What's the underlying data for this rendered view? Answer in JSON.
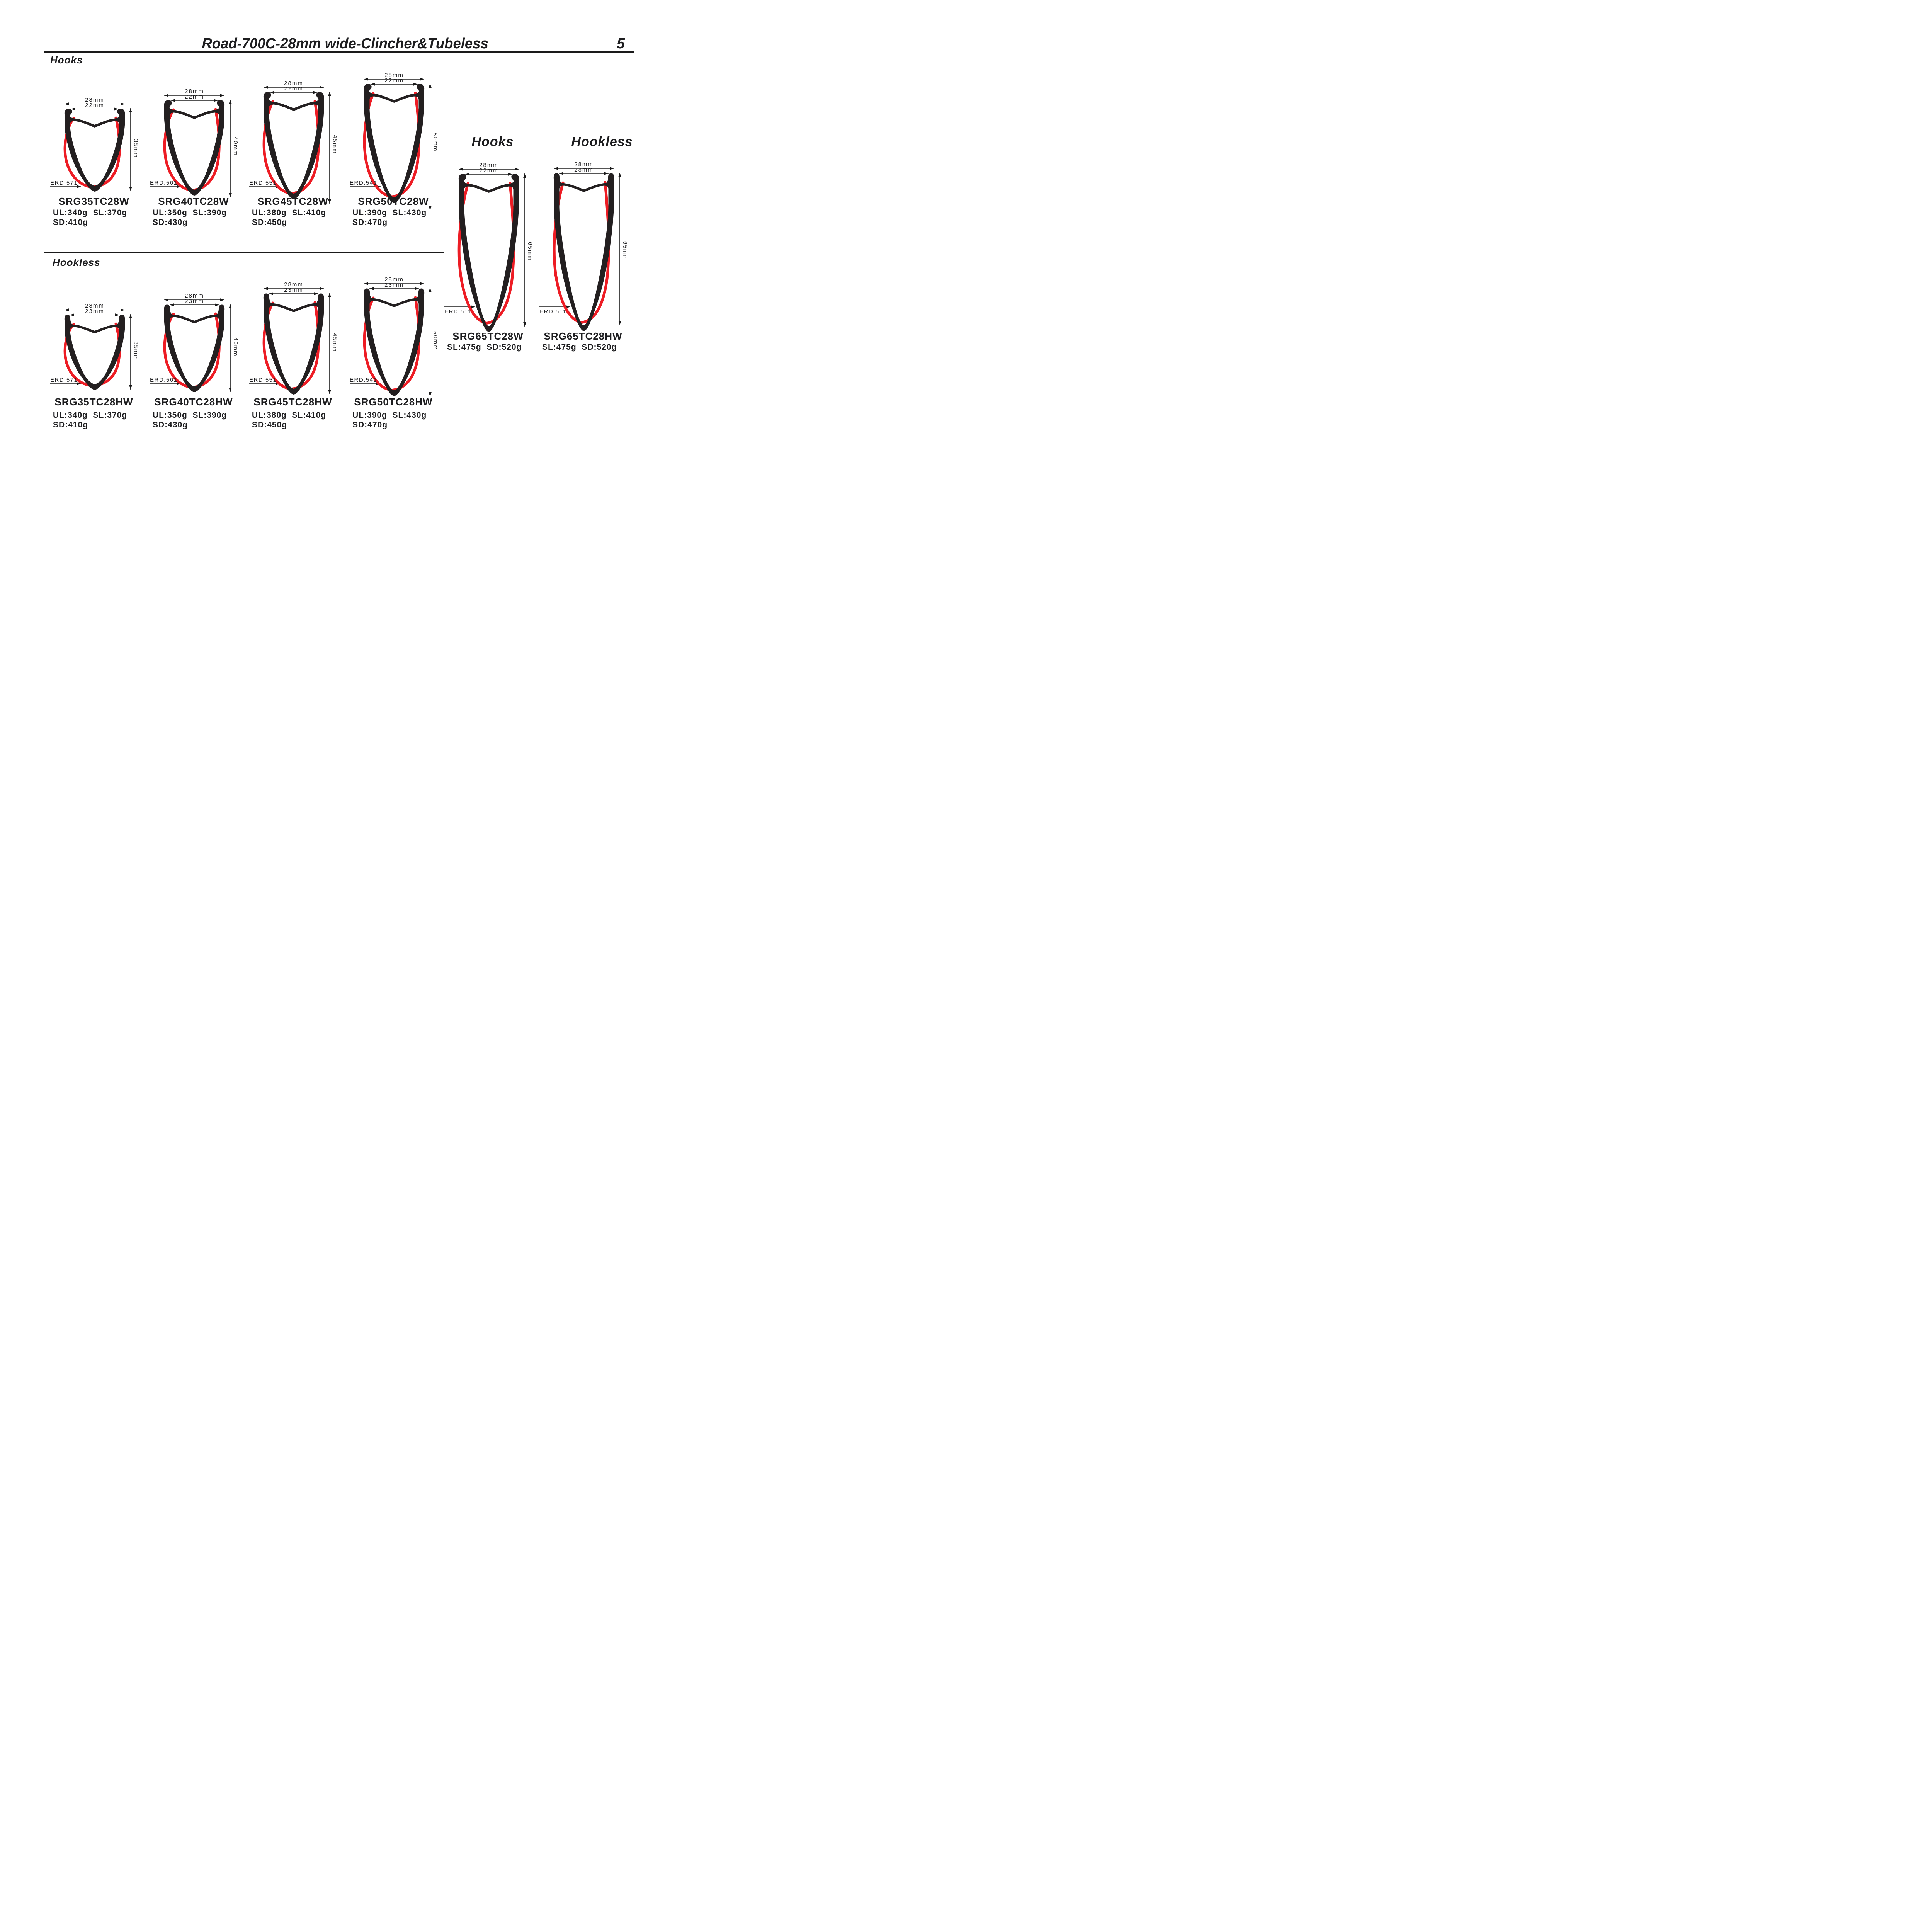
{
  "page": {
    "title": "Road-700C-28mm wide-Clincher&Tubeless",
    "page_number": "5"
  },
  "sections": {
    "hooks_heading": "Hooks",
    "hookless_heading": "Hookless",
    "right_hooks_heading": "Hooks",
    "right_hookless_heading": "Hookless"
  },
  "colors": {
    "profile_black": "#231f20",
    "accent_red": "#ed1c24",
    "text_black": "#1d1d1f"
  },
  "rims": [
    {
      "model": "SRG35TC28W",
      "outer_width": "28mm",
      "inner_width": "22mm",
      "depth": "35mm",
      "erd": "ERD:571",
      "weights": [
        "UL:340g",
        "SL:370g"
      ],
      "weights2": [
        "SD:410g"
      ]
    },
    {
      "model": "SRG40TC28W",
      "outer_width": "28mm",
      "inner_width": "22mm",
      "depth": "40mm",
      "erd": "ERD:561",
      "weights": [
        "UL:350g",
        "SL:390g"
      ],
      "weights2": [
        "SD:430g"
      ]
    },
    {
      "model": "SRG45TC28W",
      "outer_width": "28mm",
      "inner_width": "22mm",
      "depth": "45mm",
      "erd": "ERD:551",
      "weights": [
        "UL:380g",
        "SL:410g"
      ],
      "weights2": [
        "SD:450g"
      ]
    },
    {
      "model": "SRG50TC28W",
      "outer_width": "28mm",
      "inner_width": "22mm",
      "depth": "50mm",
      "erd": "ERD:541",
      "weights": [
        "UL:390g",
        "SL:430g"
      ],
      "weights2": [
        "SD:470g"
      ]
    },
    {
      "model": "SRG35TC28HW",
      "outer_width": "28mm",
      "inner_width": "23mm",
      "depth": "35mm",
      "erd": "ERD:571",
      "weights": [
        "UL:340g",
        "SL:370g"
      ],
      "weights2": [
        "SD:410g"
      ]
    },
    {
      "model": "SRG40TC28HW",
      "outer_width": "28mm",
      "inner_width": "23mm",
      "depth": "40mm",
      "erd": "ERD:561",
      "weights": [
        "UL:350g",
        "SL:390g"
      ],
      "weights2": [
        "SD:430g"
      ]
    },
    {
      "model": "SRG45TC28HW",
      "outer_width": "28mm",
      "inner_width": "23mm",
      "depth": "45mm",
      "erd": "ERD:551",
      "weights": [
        "UL:380g",
        "SL:410g"
      ],
      "weights2": [
        "SD:450g"
      ]
    },
    {
      "model": "SRG50TC28HW",
      "outer_width": "28mm",
      "inner_width": "23mm",
      "depth": "50mm",
      "erd": "ERD:541",
      "weights": [
        "UL:390g",
        "SL:430g"
      ],
      "weights2": [
        "SD:470g"
      ]
    },
    {
      "model": "SRG65TC28W",
      "outer_width": "28mm",
      "inner_width": "22mm",
      "depth": "65mm",
      "erd": "ERD:511",
      "weights": [
        "SL:475g",
        "SD:520g"
      ],
      "weights2": []
    },
    {
      "model": "SRG65TC28HW",
      "outer_width": "28mm",
      "inner_width": "23mm",
      "depth": "65mm",
      "erd": "ERD:511",
      "weights": [
        "SL:475g",
        "SD:520g"
      ],
      "weights2": []
    }
  ]
}
